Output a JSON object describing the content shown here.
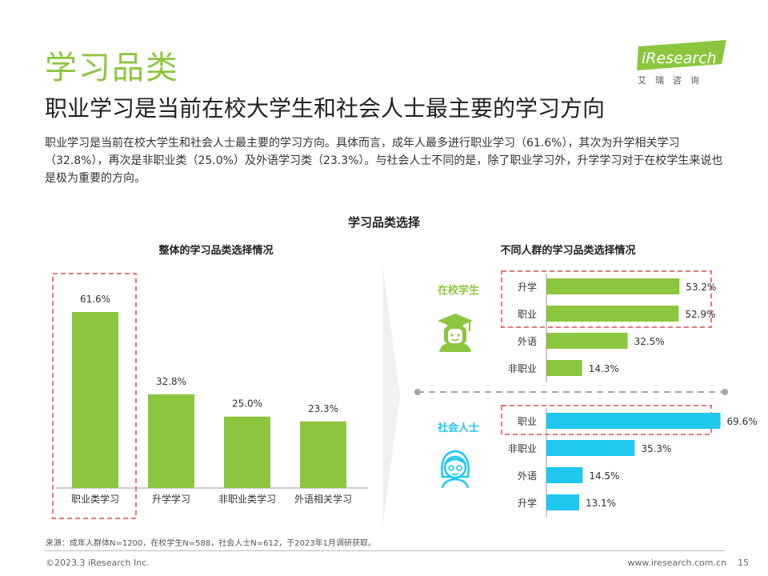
{
  "section_title": "学习品类",
  "headline": "职业学习是当前在校大学生和社会人士最主要的学习方向",
  "body_text": "职业学习是当前在校大学生和社会人士最主要的学习方向。具体而言，成年人最多进行职业学习（61.6%），其次为升学相关学习（32.8%），再次是非职业类（25.0%）及外语学习类（23.3%）。与社会人士不同的是，除了职业学习外，升学学习对于在校学生来说也是极为重要的方向。",
  "logo": {
    "brand": "iResearch",
    "tagline": "艾瑞咨询"
  },
  "chart_main_title": "学习品类选择",
  "colors": {
    "green": "#8cc63f",
    "blue": "#1ec8ef",
    "dash_red": "#e87878",
    "divider": "#a6a6a6"
  },
  "chart_data": [
    {
      "type": "bar",
      "title": "整体的学习品类选择情况",
      "categories": [
        "职业类学习",
        "升学学习",
        "非职业类学习",
        "外语相关学习"
      ],
      "values": [
        61.6,
        32.8,
        25.0,
        23.3
      ],
      "labels": [
        "61.6%",
        "32.8%",
        "25.0%",
        "23.3%"
      ],
      "highlight_index": 0,
      "ylim": [
        0,
        70
      ],
      "color": "#8cc63f"
    },
    {
      "type": "bar",
      "orientation": "horizontal",
      "title": "不同人群的学习品类选择情况",
      "groups": [
        {
          "name": "在校学生",
          "icon": "student-icon",
          "color": "#8cc63f",
          "categories": [
            "升学",
            "职业",
            "外语",
            "非职业"
          ],
          "values": [
            53.2,
            52.9,
            32.5,
            14.3
          ],
          "labels": [
            "53.2%",
            "52.9%",
            "32.5%",
            "14.3%"
          ],
          "highlight": [
            0,
            1
          ]
        },
        {
          "name": "社会人士",
          "icon": "adult-woman-icon",
          "color": "#1ec8ef",
          "categories": [
            "职业",
            "非职业",
            "外语",
            "升学"
          ],
          "values": [
            69.6,
            35.3,
            14.5,
            13.1
          ],
          "labels": [
            "69.6%",
            "35.3%",
            "14.5%",
            "13.1%"
          ],
          "highlight": [
            0
          ]
        }
      ],
      "xlim": [
        0,
        80
      ]
    }
  ],
  "source": "来源：成年人群体N=1200，在校学生N=588，社会人士N=612，于2023年1月调研获取。",
  "copyright": "©2023.3 iResearch Inc.",
  "website": "www.iresearch.com.cn",
  "page_number": "15"
}
